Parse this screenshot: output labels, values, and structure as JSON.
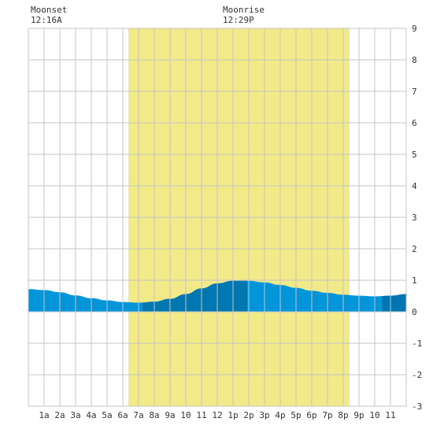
{
  "header": {
    "moonset_label": "Moonset",
    "moonset_time": "12:16A",
    "moonrise_label": "Moonrise",
    "moonrise_time": "12:29P"
  },
  "colors": {
    "daylight": "#f2ea88",
    "tide_fill": "#0395da",
    "tide_fill_dark": "#0077b0",
    "grid": "#c4c4c4",
    "text": "#333333"
  },
  "chart_data": {
    "type": "area",
    "title": "",
    "xlabel": "",
    "ylabel": "",
    "xlim": [
      0,
      24
    ],
    "ylim": [
      -3,
      9
    ],
    "yticks": [
      9,
      8,
      7,
      6,
      5,
      4,
      3,
      2,
      1,
      0,
      -1,
      -2,
      -3
    ],
    "xtick_labels": [
      "1a",
      "2a",
      "3a",
      "4a",
      "5a",
      "6a",
      "7a",
      "8a",
      "9a",
      "10",
      "11",
      "12",
      "1p",
      "2p",
      "3p",
      "4p",
      "5p",
      "6p",
      "7p",
      "8p",
      "9p",
      "10",
      "11"
    ],
    "daylight": {
      "start_hour": 6.35,
      "end_hour": 20.4
    },
    "highlight_bands": [
      [
        7.25,
        13.9
      ],
      [
        22.45,
        24
      ]
    ],
    "grid": true,
    "series": [
      {
        "x": [
          0,
          1,
          2,
          3,
          4,
          5,
          6,
          7,
          8,
          9,
          10,
          11,
          12,
          13,
          14,
          15,
          16,
          17,
          18,
          19,
          20,
          21,
          22,
          23,
          24
        ],
        "values": [
          0.72,
          0.69,
          0.62,
          0.52,
          0.43,
          0.36,
          0.31,
          0.29,
          0.32,
          0.41,
          0.56,
          0.74,
          0.9,
          0.98,
          0.98,
          0.93,
          0.85,
          0.76,
          0.67,
          0.6,
          0.54,
          0.51,
          0.49,
          0.51,
          0.56
        ]
      }
    ]
  }
}
